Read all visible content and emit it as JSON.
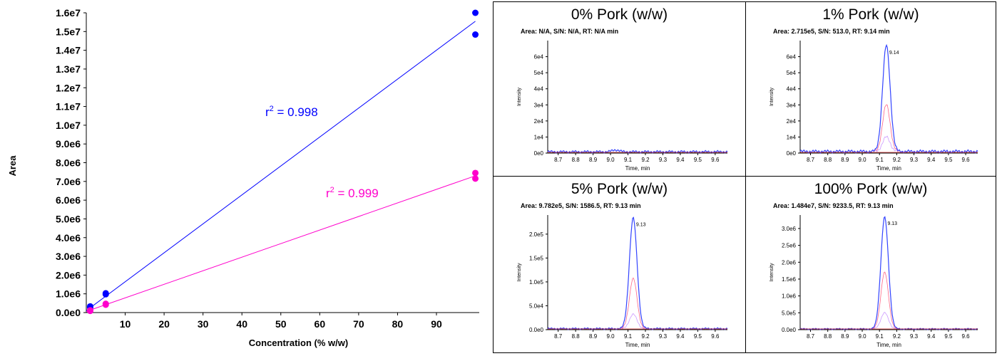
{
  "chart_data": [
    {
      "type": "scatter",
      "title": "",
      "xlabel": "Concentration (% w/w)",
      "ylabel": "Area",
      "xlim": [
        0,
        101
      ],
      "ylim": [
        0,
        16000000
      ],
      "xticks": [
        "10",
        "20",
        "30",
        "40",
        "50",
        "60",
        "70",
        "80",
        "90"
      ],
      "yticks": [
        "0.0e0",
        "1.0e6",
        "2.0e6",
        "3.0e6",
        "4.0e6",
        "5.0e6",
        "6.0e6",
        "7.0e6",
        "8.0e6",
        "9.0e6",
        "1.0e7",
        "1.1e7",
        "1.2e7",
        "1.3e7",
        "1.4e7",
        "1.5e7",
        "1.6e7"
      ],
      "grid": false,
      "series": [
        {
          "color": "#0000ff",
          "points": [
            [
              1,
              271500
            ],
            [
              1,
              330000
            ],
            [
              5,
              978200
            ],
            [
              5,
              1030000
            ],
            [
              100,
              14840000
            ],
            [
              100,
              16000000
            ]
          ],
          "fit_line": [
            [
              0,
              100000
            ],
            [
              100,
              15550000
            ]
          ],
          "annotation": "r",
          "annotation_sup": "2",
          "annotation_value": " = 0.998"
        },
        {
          "color": "#ff00cc",
          "points": [
            [
              1,
              90000
            ],
            [
              1,
              120000
            ],
            [
              5,
              420000
            ],
            [
              5,
              470000
            ],
            [
              100,
              7150000
            ],
            [
              100,
              7450000
            ]
          ],
          "fit_line": [
            [
              0,
              60000
            ],
            [
              100,
              7300000
            ]
          ],
          "annotation": "r",
          "annotation_sup": "2",
          "annotation_value": " = 0.999"
        }
      ]
    },
    {
      "type": "line",
      "title": "0% Pork (w/w)",
      "info": "Area: N/A, S/N: N/A, RT: N/A min",
      "xlabel": "Time, min",
      "ylabel": "Intensity",
      "xlim": [
        8.64,
        9.67
      ],
      "xticks": [
        "8.7",
        "8.8",
        "8.9",
        "9.0",
        "9.1",
        "9.2",
        "9.3",
        "9.4",
        "9.5",
        "9.6"
      ],
      "ylim": [
        0,
        70000
      ],
      "ytick_values": [
        0,
        10000,
        20000,
        30000,
        40000,
        50000,
        60000
      ],
      "yticks": [
        "0e0",
        "1e4",
        "2e4",
        "3e4",
        "4e4",
        "5e4",
        "6e4"
      ],
      "peak_rt": null,
      "peak_label": "",
      "peak_height": 0,
      "trace_heights": [
        0,
        0,
        0
      ],
      "baseline": 800
    },
    {
      "type": "line",
      "title": "1% Pork (w/w)",
      "info": "Area: 2.715e5, S/N: 513.0, RT: 9.14 min",
      "xlabel": "Time, min",
      "ylabel": "Intensity",
      "xlim": [
        8.64,
        9.67
      ],
      "xticks": [
        "8.7",
        "8.8",
        "8.9",
        "9.0",
        "9.1",
        "9.2",
        "9.3",
        "9.4",
        "9.5",
        "9.6"
      ],
      "ylim": [
        0,
        70000
      ],
      "ytick_values": [
        0,
        10000,
        20000,
        30000,
        40000,
        50000,
        60000
      ],
      "yticks": [
        "0e0",
        "1e4",
        "2e4",
        "3e4",
        "4e4",
        "5e4",
        "6e4"
      ],
      "peak_rt": 9.14,
      "peak_label": "9.14",
      "peak_height": 66000,
      "trace_heights": [
        66000,
        29000,
        9000
      ],
      "baseline": 1000
    },
    {
      "type": "line",
      "title": "5% Pork (w/w)",
      "info": "Area: 9.782e5, S/N: 1586.5, RT: 9.13 min",
      "xlabel": "Time, min",
      "ylabel": "Intensity",
      "xlim": [
        8.64,
        9.67
      ],
      "xticks": [
        "8.7",
        "8.8",
        "8.9",
        "9.0",
        "9.1",
        "9.2",
        "9.3",
        "9.4",
        "9.5",
        "9.6"
      ],
      "ylim": [
        0,
        240000
      ],
      "ytick_values": [
        0,
        50000,
        100000,
        150000,
        200000
      ],
      "yticks": [
        "0.0e0",
        "5.0e4",
        "1.0e5",
        "1.5e5",
        "2.0e5"
      ],
      "peak_rt": 9.13,
      "peak_label": "9.13",
      "peak_height": 232000,
      "trace_heights": [
        232000,
        105000,
        30000
      ],
      "baseline": 2000
    },
    {
      "type": "line",
      "title": "100% Pork (w/w)",
      "info": "Area: 1.484e7, S/N: 9233.5, RT: 9.13 min",
      "xlabel": "Time, min",
      "ylabel": "Intensity",
      "xlim": [
        8.64,
        9.67
      ],
      "xticks": [
        "8.7",
        "8.8",
        "8.9",
        "9.0",
        "9.1",
        "9.2",
        "9.3",
        "9.4",
        "9.5",
        "9.6"
      ],
      "ylim": [
        0,
        3400000
      ],
      "ytick_values": [
        0,
        500000,
        1000000,
        1500000,
        2000000,
        2500000,
        3000000
      ],
      "yticks": [
        "0.0e0",
        "5.0e5",
        "1.0e6",
        "1.5e6",
        "2.0e6",
        "2.5e6",
        "3.0e6"
      ],
      "peak_rt": 9.13,
      "peak_label": "9.13",
      "peak_height": 3320000,
      "trace_heights": [
        3320000,
        1680000,
        480000
      ],
      "baseline": 20000
    }
  ]
}
